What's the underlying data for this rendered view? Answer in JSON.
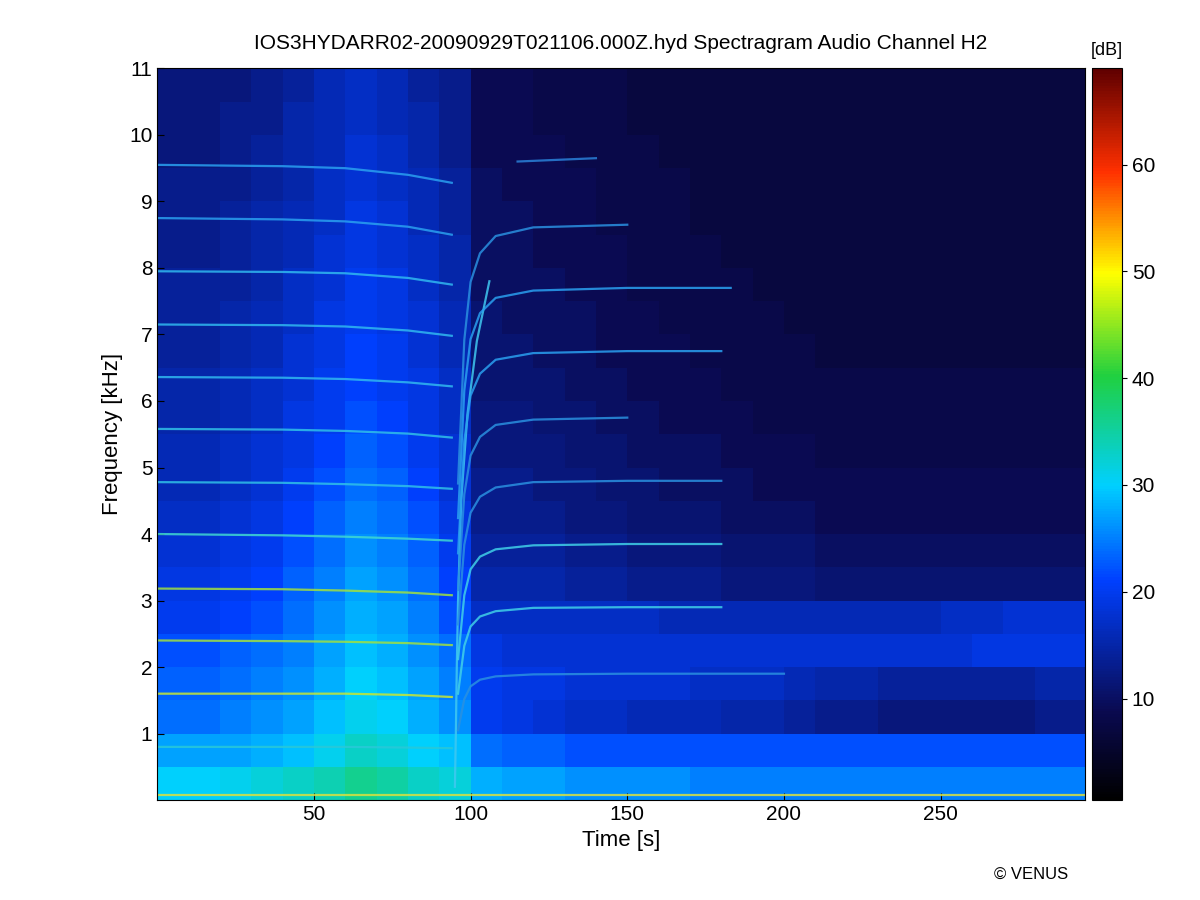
{
  "chart_data": {
    "type": "spectrogram",
    "title": "IOS3HYDARR02-20090929T021106.000Z.hyd Spectragram Audio Channel H2",
    "x_label": "Time [s]",
    "y_label": "Frequency [kHz]",
    "annotation": "© VENUS",
    "xlim": [
      0,
      296
    ],
    "xticks": [
      50,
      100,
      150,
      200,
      250
    ],
    "ylim": [
      0,
      11
    ],
    "yticks": [
      1,
      2,
      3,
      4,
      5,
      6,
      7,
      8,
      9,
      10,
      11
    ],
    "colorbar": {
      "label": "[dB]",
      "range": [
        0.5,
        69
      ],
      "ticks": [
        10,
        20,
        30,
        40,
        50,
        60
      ]
    },
    "x_edges": [
      0,
      10,
      20,
      30,
      40,
      50,
      60,
      70,
      80,
      90,
      100,
      110,
      120,
      130,
      140,
      150,
      160,
      170,
      180,
      190,
      200,
      210,
      220,
      230,
      240,
      250,
      260,
      270,
      280,
      290,
      296
    ],
    "y_edges": [
      0,
      0.5,
      1,
      1.5,
      2,
      2.5,
      3,
      3.5,
      4,
      4.5,
      5,
      5.5,
      6,
      6.5,
      7,
      7.5,
      8,
      8.5,
      9,
      9.5,
      10,
      10.5,
      11
    ],
    "cells": [
      [
        30,
        30,
        31,
        32,
        33,
        34,
        36,
        35,
        33,
        32,
        28,
        27,
        27,
        26,
        26,
        26,
        26,
        25,
        25,
        25,
        25,
        25,
        25,
        25,
        25,
        25,
        25,
        25,
        25,
        25
      ],
      [
        27,
        27,
        27,
        28,
        29,
        31,
        33,
        32,
        30,
        29,
        24,
        23,
        23,
        22,
        22,
        22,
        22,
        22,
        22,
        22,
        22,
        22,
        22,
        22,
        22,
        22,
        22,
        22,
        22,
        22
      ],
      [
        24,
        24,
        25,
        26,
        27,
        29,
        31,
        30,
        28,
        26,
        20,
        19,
        18,
        17,
        17,
        16,
        16,
        16,
        15,
        15,
        14,
        13,
        13,
        12,
        12,
        12,
        12,
        12,
        13,
        13
      ],
      [
        23,
        23,
        24,
        25,
        26,
        28,
        30,
        29,
        27,
        25,
        20,
        19,
        19,
        18,
        18,
        18,
        18,
        17,
        17,
        17,
        16,
        15,
        15,
        14,
        14,
        14,
        14,
        14,
        15,
        15
      ],
      [
        22,
        22,
        23,
        24,
        25,
        27,
        29,
        28,
        26,
        24,
        19,
        18,
        18,
        18,
        18,
        18,
        18,
        18,
        18,
        18,
        18,
        18,
        18,
        18,
        18,
        18,
        19,
        19,
        19,
        19
      ],
      [
        20,
        20,
        21,
        22,
        24,
        26,
        28,
        27,
        25,
        22,
        17,
        17,
        17,
        17,
        17,
        17,
        16,
        16,
        16,
        16,
        16,
        16,
        16,
        16,
        16,
        17,
        17,
        18,
        18,
        18
      ],
      [
        19,
        19,
        20,
        21,
        23,
        25,
        27,
        26,
        24,
        21,
        15,
        15,
        15,
        14,
        14,
        13,
        13,
        13,
        12,
        12,
        12,
        11,
        11,
        11,
        11,
        11,
        11,
        11,
        11,
        11
      ],
      [
        18,
        18,
        19,
        20,
        22,
        24,
        26,
        25,
        23,
        20,
        14,
        14,
        14,
        13,
        13,
        12,
        12,
        12,
        11,
        11,
        11,
        10,
        10,
        10,
        10,
        10,
        10,
        10,
        10,
        10
      ],
      [
        17,
        17,
        18,
        19,
        21,
        23,
        25,
        24,
        22,
        19,
        13,
        13,
        13,
        12,
        12,
        11,
        11,
        11,
        10,
        10,
        10,
        9,
        9,
        9,
        9,
        9,
        9,
        9,
        9,
        9
      ],
      [
        16,
        16,
        17,
        18,
        20,
        22,
        24,
        23,
        21,
        18,
        13,
        13,
        12,
        12,
        11,
        11,
        10,
        10,
        10,
        9,
        9,
        9,
        9,
        9,
        9,
        9,
        9,
        9,
        9,
        9
      ],
      [
        16,
        16,
        17,
        18,
        19,
        21,
        23,
        22,
        20,
        18,
        12,
        12,
        12,
        11,
        11,
        10,
        10,
        10,
        9,
        9,
        9,
        8,
        8,
        8,
        8,
        8,
        8,
        8,
        8,
        8
      ],
      [
        15,
        15,
        16,
        17,
        19,
        20,
        22,
        21,
        19,
        17,
        12,
        12,
        11,
        11,
        10,
        10,
        9,
        9,
        9,
        8,
        8,
        8,
        8,
        8,
        8,
        8,
        8,
        8,
        8,
        8
      ],
      [
        15,
        15,
        16,
        17,
        18,
        20,
        21,
        20,
        19,
        17,
        11,
        11,
        11,
        10,
        10,
        9,
        9,
        9,
        8,
        8,
        8,
        8,
        8,
        8,
        8,
        8,
        8,
        8,
        8,
        8
      ],
      [
        14,
        14,
        15,
        16,
        18,
        19,
        21,
        20,
        18,
        16,
        11,
        11,
        10,
        10,
        9,
        9,
        9,
        8,
        8,
        8,
        8,
        7,
        7,
        7,
        7,
        7,
        7,
        7,
        7,
        7
      ],
      [
        14,
        14,
        15,
        16,
        17,
        19,
        20,
        19,
        18,
        16,
        11,
        10,
        10,
        10,
        9,
        9,
        8,
        8,
        8,
        8,
        7,
        7,
        7,
        7,
        7,
        7,
        7,
        7,
        7,
        7
      ],
      [
        14,
        14,
        14,
        15,
        17,
        18,
        20,
        19,
        17,
        15,
        10,
        10,
        10,
        9,
        9,
        8,
        8,
        8,
        8,
        7,
        7,
        7,
        7,
        7,
        7,
        7,
        7,
        7,
        7,
        7
      ],
      [
        13,
        13,
        14,
        15,
        16,
        18,
        19,
        18,
        17,
        15,
        10,
        10,
        9,
        9,
        9,
        8,
        8,
        8,
        7,
        7,
        7,
        7,
        7,
        7,
        7,
        7,
        7,
        7,
        7,
        7
      ],
      [
        13,
        13,
        14,
        15,
        16,
        17,
        19,
        18,
        16,
        14,
        10,
        10,
        9,
        9,
        8,
        8,
        8,
        7,
        7,
        7,
        7,
        7,
        7,
        7,
        7,
        7,
        7,
        7,
        7,
        7
      ],
      [
        13,
        13,
        13,
        14,
        15,
        17,
        18,
        17,
        16,
        14,
        10,
        9,
        9,
        9,
        8,
        8,
        8,
        7,
        7,
        7,
        7,
        7,
        7,
        7,
        7,
        7,
        7,
        7,
        7,
        7
      ],
      [
        12,
        12,
        13,
        14,
        15,
        16,
        18,
        17,
        15,
        13,
        9,
        9,
        9,
        8,
        8,
        8,
        7,
        7,
        7,
        7,
        7,
        7,
        7,
        7,
        7,
        7,
        7,
        7,
        7,
        7
      ],
      [
        12,
        12,
        13,
        13,
        15,
        16,
        17,
        16,
        15,
        13,
        9,
        9,
        8,
        8,
        8,
        7,
        7,
        7,
        7,
        7,
        7,
        7,
        7,
        7,
        7,
        7,
        7,
        7,
        7,
        7
      ],
      [
        12,
        12,
        12,
        13,
        14,
        16,
        17,
        16,
        14,
        13,
        9,
        9,
        8,
        8,
        8,
        7,
        7,
        7,
        7,
        7,
        7,
        7,
        7,
        7,
        7,
        7,
        7,
        7,
        7,
        7
      ]
    ],
    "series": [
      {
        "x": [
          0,
          296
        ],
        "values": [
          0.08,
          0.08
        ],
        "color": "#d8e040"
      },
      {
        "x": [
          0,
          40,
          60,
          80,
          94
        ],
        "values": [
          0.8,
          0.8,
          0.8,
          0.79,
          0.78
        ],
        "color": "#29c8d8"
      },
      {
        "x": [
          0,
          40,
          60,
          80,
          94
        ],
        "values": [
          1.6,
          1.6,
          1.6,
          1.58,
          1.55
        ],
        "color": "#c8e632"
      },
      {
        "x": [
          0,
          40,
          60,
          80,
          94
        ],
        "values": [
          2.4,
          2.39,
          2.38,
          2.36,
          2.33
        ],
        "color": "#a0e040"
      },
      {
        "x": [
          0,
          40,
          60,
          80,
          94
        ],
        "values": [
          3.18,
          3.17,
          3.15,
          3.12,
          3.08
        ],
        "color": "#a0e040"
      },
      {
        "x": [
          0,
          40,
          60,
          80,
          94
        ],
        "values": [
          4.0,
          3.98,
          3.96,
          3.93,
          3.9
        ],
        "color": "#40d8d0"
      },
      {
        "x": [
          0,
          40,
          60,
          80,
          94
        ],
        "values": [
          4.78,
          4.77,
          4.75,
          4.72,
          4.68
        ],
        "color": "#30c0e8"
      },
      {
        "x": [
          0,
          40,
          60,
          80,
          94
        ],
        "values": [
          5.58,
          5.57,
          5.55,
          5.51,
          5.45
        ],
        "color": "#30c0e8"
      },
      {
        "x": [
          0,
          40,
          60,
          80,
          94
        ],
        "values": [
          6.36,
          6.35,
          6.33,
          6.28,
          6.22
        ],
        "color": "#30b8f0"
      },
      {
        "x": [
          0,
          40,
          60,
          80,
          94
        ],
        "values": [
          7.15,
          7.14,
          7.12,
          7.06,
          6.98
        ],
        "color": "#30b8f0"
      },
      {
        "x": [
          0,
          40,
          60,
          80,
          94
        ],
        "values": [
          7.95,
          7.94,
          7.92,
          7.85,
          7.75
        ],
        "color": "#30b8f0"
      },
      {
        "x": [
          0,
          40,
          60,
          80,
          94
        ],
        "values": [
          8.75,
          8.73,
          8.7,
          8.62,
          8.5
        ],
        "color": "#2aa0f0"
      },
      {
        "x": [
          0,
          40,
          60,
          80,
          94
        ],
        "values": [
          9.55,
          9.53,
          9.5,
          9.4,
          9.28
        ],
        "color": "#2aa0f0"
      },
      {
        "x": [
          95,
          95.3,
          95.6,
          96,
          97,
          99,
          102,
          106
        ],
        "values": [
          0.2,
          1.0,
          2.0,
          3.0,
          4.5,
          5.8,
          6.9,
          7.8
        ],
        "color": "#40c8f0"
      },
      {
        "x": [
          96,
          98,
          100,
          103,
          108,
          120,
          150,
          200
        ],
        "values": [
          1.05,
          1.52,
          1.71,
          1.81,
          1.86,
          1.89,
          1.9,
          1.9
        ],
        "color": "#2a90e0"
      },
      {
        "x": [
          96,
          98,
          100,
          103,
          108,
          120,
          150,
          180
        ],
        "values": [
          1.6,
          2.32,
          2.61,
          2.76,
          2.84,
          2.89,
          2.9,
          2.9
        ],
        "color": "#40d0e8"
      },
      {
        "x": [
          96,
          98,
          100,
          103,
          108,
          120,
          150,
          180
        ],
        "values": [
          2.12,
          3.08,
          3.47,
          3.66,
          3.77,
          3.83,
          3.85,
          3.85
        ],
        "color": "#40d0e8"
      },
      {
        "x": [
          96,
          98,
          100,
          103,
          108,
          120,
          150,
          180
        ],
        "values": [
          2.64,
          3.84,
          4.32,
          4.56,
          4.7,
          4.78,
          4.8,
          4.8
        ],
        "color": "#2a90e0"
      },
      {
        "x": [
          96,
          98,
          100,
          103,
          108,
          120,
          150
        ],
        "values": [
          3.16,
          4.6,
          5.18,
          5.46,
          5.64,
          5.72,
          5.75
        ],
        "color": "#2a90e0"
      },
      {
        "x": [
          96,
          98,
          100,
          103,
          108,
          120,
          150,
          180
        ],
        "values": [
          3.71,
          5.4,
          6.08,
          6.41,
          6.62,
          6.72,
          6.75,
          6.75
        ],
        "color": "#2aa0f0"
      },
      {
        "x": [
          96,
          98,
          100,
          103,
          108,
          120,
          150,
          183
        ],
        "values": [
          4.24,
          6.16,
          6.93,
          7.32,
          7.55,
          7.66,
          7.7,
          7.7
        ],
        "color": "#2aa0f0"
      },
      {
        "x": [
          96,
          98,
          100,
          103,
          108,
          120,
          150
        ],
        "values": [
          4.76,
          6.92,
          7.79,
          8.22,
          8.48,
          8.61,
          8.65
        ],
        "color": "#2a90e0"
      },
      {
        "x": [
          115,
          140
        ],
        "values": [
          9.6,
          9.65
        ],
        "color": "#2a80d8"
      }
    ]
  }
}
